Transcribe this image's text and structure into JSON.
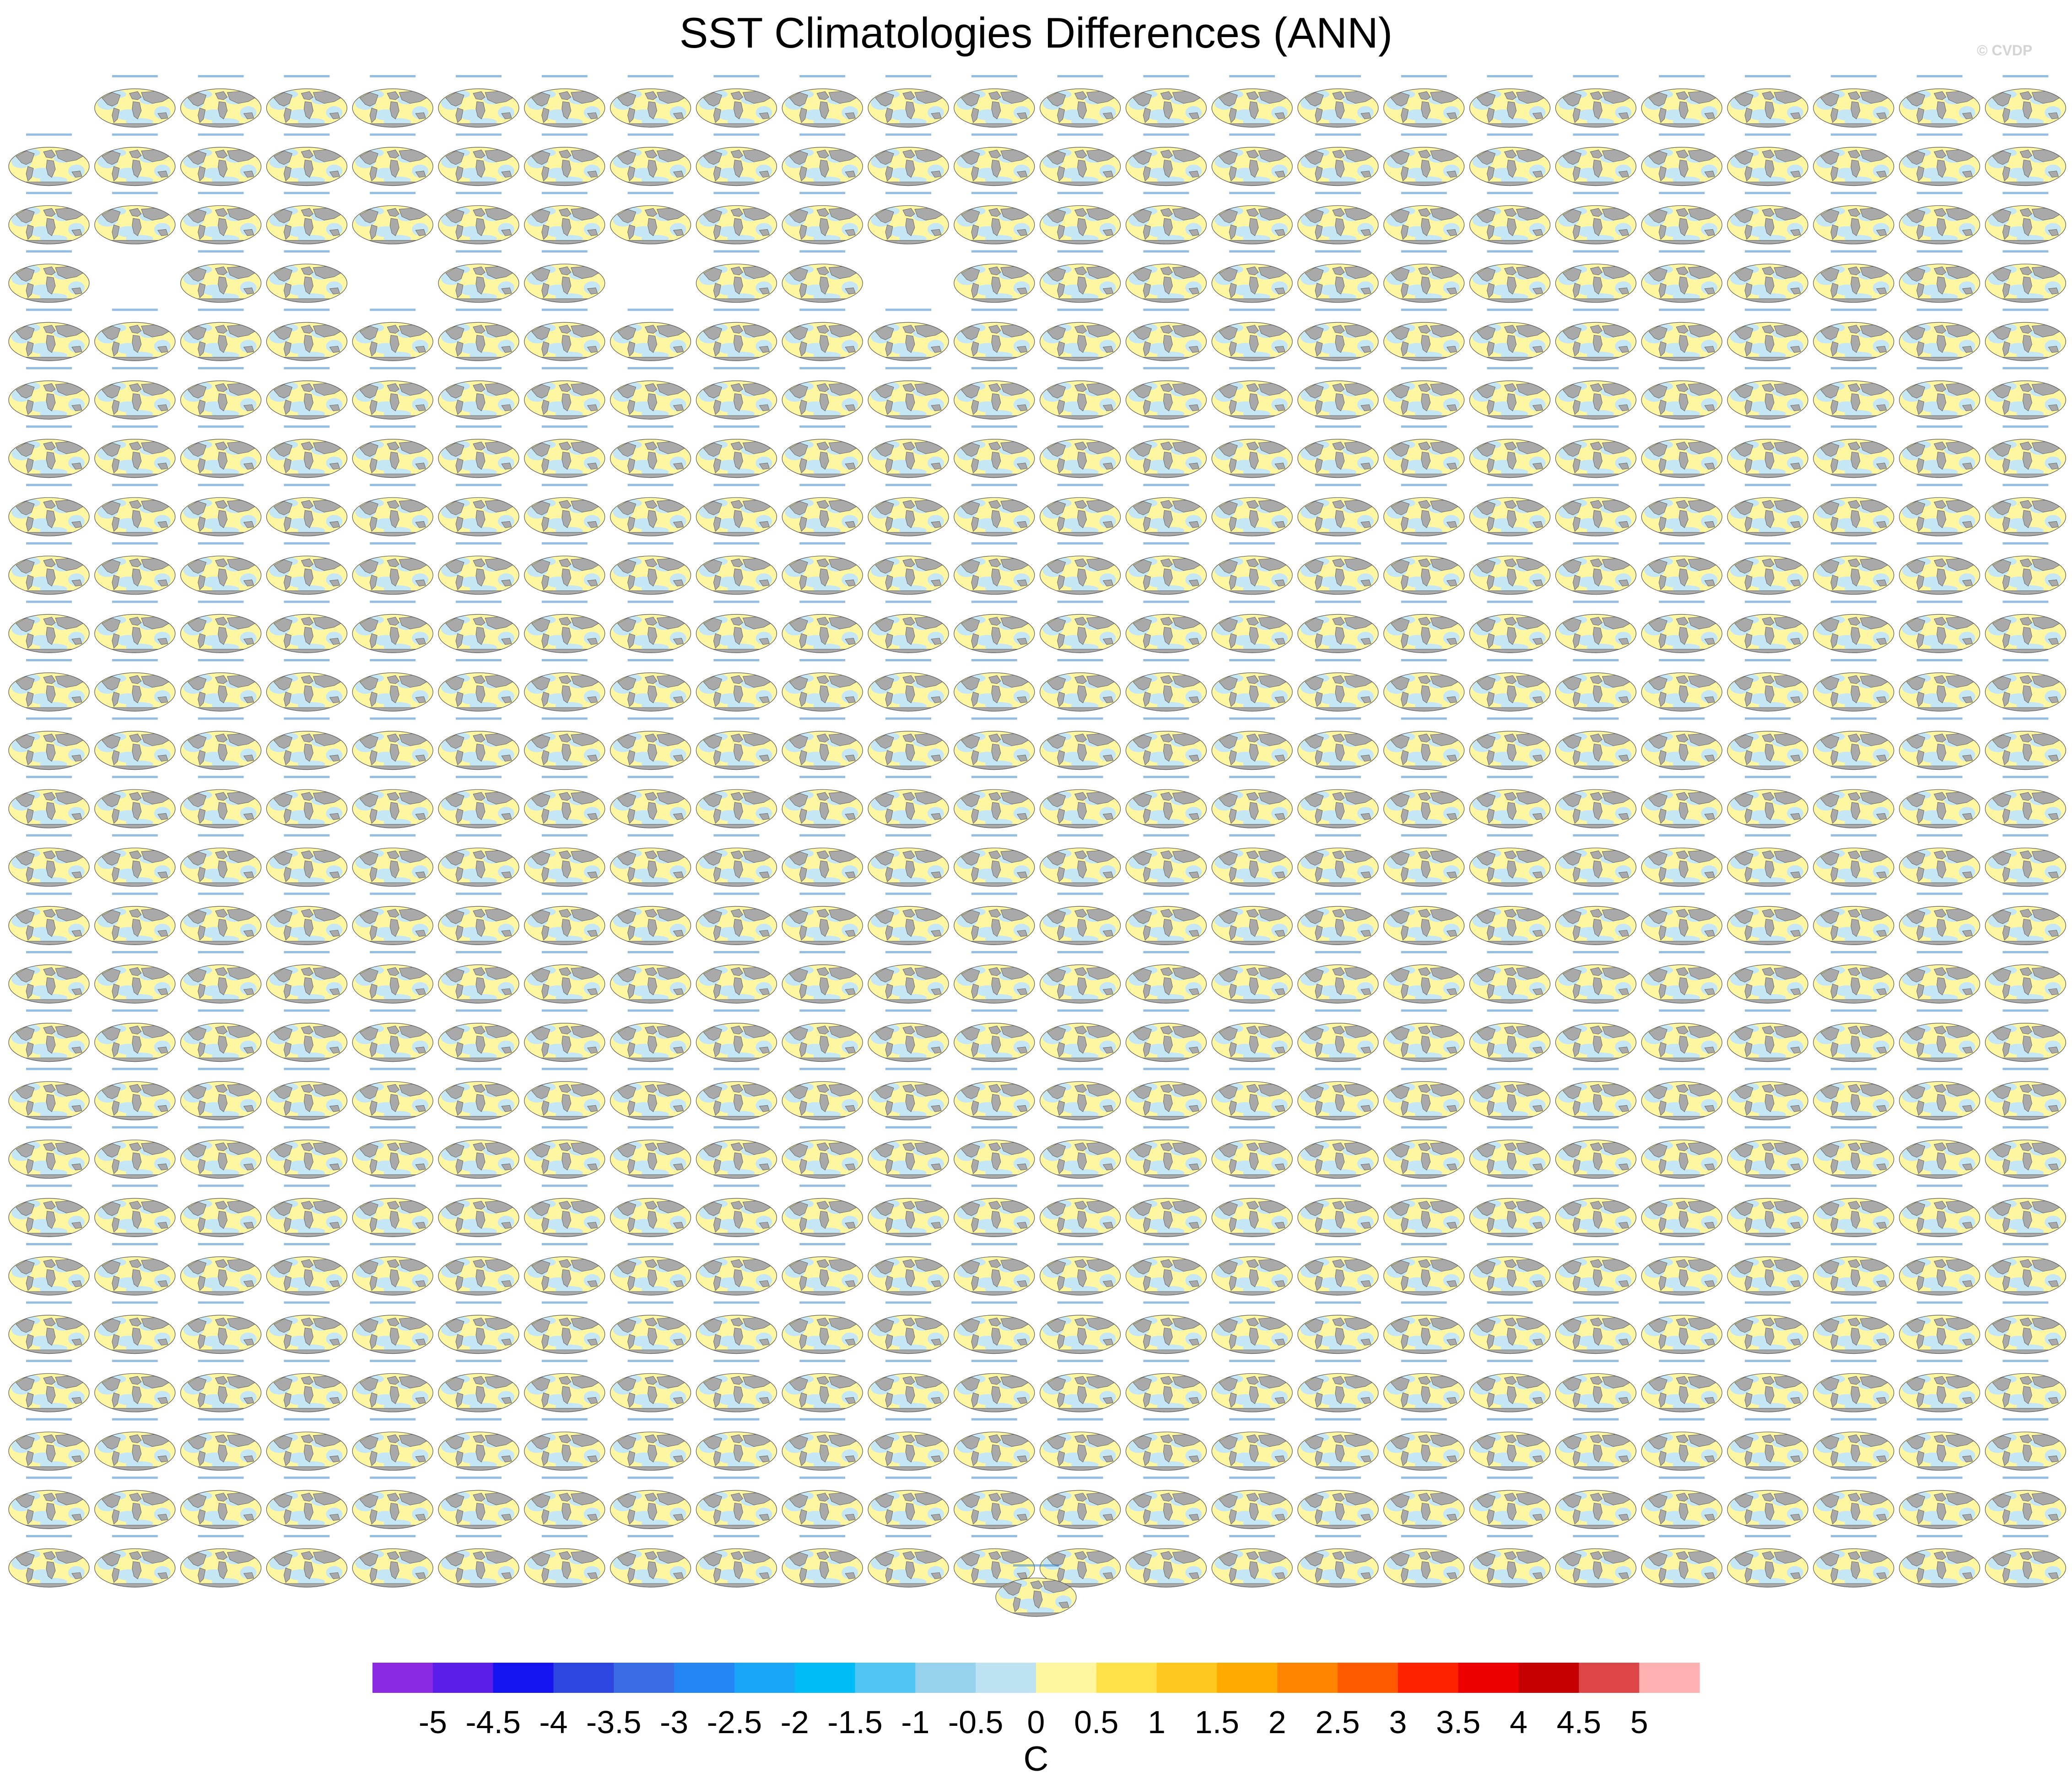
{
  "figure": {
    "title": "SST Climatologies Differences (ANN)",
    "copyright": "© CVDP"
  },
  "panel_grid": {
    "rows": 26,
    "columns": 24,
    "missing_panels": [
      [
        0,
        0
      ],
      [
        3,
        1
      ],
      [
        3,
        4
      ],
      [
        3,
        7
      ],
      [
        3,
        10
      ]
    ],
    "extra_panel_below_grid": true,
    "panel_caption": "OLENS average-bsh..."
  },
  "colorbar": {
    "tick_labels": [
      "-5",
      "-4.5",
      "-4",
      "-3.5",
      "-3",
      "-2.5",
      "-2",
      "-1.5",
      "-1",
      "-0.5",
      "0",
      "0.5",
      "1",
      "1.5",
      "2",
      "2.5",
      "3",
      "3.5",
      "4",
      "4.5",
      "5"
    ],
    "unit_label": "C",
    "colors": [
      "#8a2be2",
      "#5a1ee8",
      "#1414f0",
      "#2e46e0",
      "#3a6ce6",
      "#2486f2",
      "#1aa6f8",
      "#00bcf6",
      "#52c6f2",
      "#96d2ee",
      "#bde2f2",
      "#fff7a0",
      "#ffe24a",
      "#ffc81e",
      "#ffaa00",
      "#ff8400",
      "#ff5a00",
      "#ff2200",
      "#ee0000",
      "#c60000",
      "#dc4646",
      "#ffb0b0"
    ]
  },
  "map_colors": {
    "ocean_warm": "#fff6a2",
    "ocean_cool": "#c5e6f5",
    "land": "#a9a9a9",
    "outline": "#555555",
    "caption": "#3a88c8"
  }
}
